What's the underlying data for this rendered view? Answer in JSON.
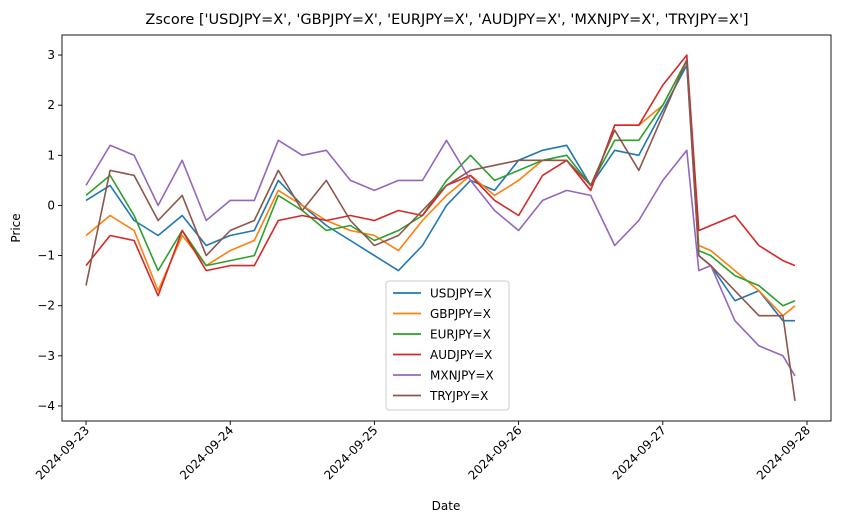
{
  "chart_data": {
    "type": "line",
    "title": "Zscore ['USDJPY=X', 'GBPJPY=X', 'EURJPY=X', 'AUDJPY=X', 'MXNJPY=X', 'TRYJPY=X']",
    "xlabel": "Date",
    "ylabel": "Price",
    "x_ticks": [
      "2024-09-23",
      "2024-09-24",
      "2024-09-25",
      "2024-09-26",
      "2024-09-27",
      "2024-09-28"
    ],
    "y_ticks": [
      "3",
      "2",
      "1",
      "0",
      "−1",
      "−2",
      "−3",
      "−4"
    ],
    "xlim": [
      "2024-09-22T20:00",
      "2024-09-28T04:00"
    ],
    "ylim": [
      -4.3,
      3.4
    ],
    "grid": false,
    "legend_position": "lower center",
    "x": [
      "2024-09-23T00:00",
      "2024-09-23T04:00",
      "2024-09-23T08:00",
      "2024-09-23T12:00",
      "2024-09-23T16:00",
      "2024-09-23T20:00",
      "2024-09-24T00:00",
      "2024-09-24T04:00",
      "2024-09-24T08:00",
      "2024-09-24T12:00",
      "2024-09-24T16:00",
      "2024-09-24T20:00",
      "2024-09-25T00:00",
      "2024-09-25T04:00",
      "2024-09-25T08:00",
      "2024-09-25T12:00",
      "2024-09-25T16:00",
      "2024-09-25T20:00",
      "2024-09-26T00:00",
      "2024-09-26T04:00",
      "2024-09-26T08:00",
      "2024-09-26T12:00",
      "2024-09-26T16:00",
      "2024-09-26T20:00",
      "2024-09-27T00:00",
      "2024-09-27T04:00",
      "2024-09-27T06:00",
      "2024-09-27T08:00",
      "2024-09-27T12:00",
      "2024-09-27T16:00",
      "2024-09-27T20:00",
      "2024-09-27T22:00"
    ],
    "series": [
      {
        "name": "USDJPY=X",
        "color": "#1f77b4",
        "values": [
          0.1,
          0.4,
          -0.3,
          -0.6,
          -0.2,
          -0.8,
          -0.6,
          -0.5,
          0.5,
          0.0,
          -0.4,
          -0.7,
          -1.0,
          -1.3,
          -0.8,
          0.0,
          0.5,
          0.3,
          0.9,
          1.1,
          1.2,
          0.4,
          1.1,
          1.0,
          1.9,
          2.8,
          -1.0,
          -1.2,
          -1.9,
          -1.7,
          -2.3,
          -2.3
        ]
      },
      {
        "name": "GBPJPY=X",
        "color": "#ff7f0e",
        "values": [
          -0.6,
          -0.2,
          -0.5,
          -1.7,
          -0.6,
          -1.2,
          -0.9,
          -0.7,
          0.3,
          0.0,
          -0.3,
          -0.5,
          -0.6,
          -0.9,
          -0.3,
          0.2,
          0.6,
          0.2,
          0.5,
          0.9,
          0.9,
          0.3,
          1.6,
          1.6,
          2.0,
          2.9,
          -0.8,
          -0.9,
          -1.3,
          -1.7,
          -2.2,
          -2.0
        ]
      },
      {
        "name": "EURJPY=X",
        "color": "#2ca02c",
        "values": [
          0.2,
          0.6,
          -0.2,
          -1.3,
          -0.5,
          -1.2,
          -1.1,
          -1.0,
          0.2,
          -0.1,
          -0.5,
          -0.4,
          -0.7,
          -0.5,
          -0.2,
          0.5,
          1.0,
          0.5,
          0.7,
          0.9,
          1.0,
          0.4,
          1.3,
          1.3,
          2.0,
          2.9,
          -0.9,
          -1.0,
          -1.4,
          -1.6,
          -2.0,
          -1.9
        ]
      },
      {
        "name": "AUDJPY=X",
        "color": "#d62728",
        "values": [
          -1.2,
          -0.6,
          -0.7,
          -1.8,
          -0.5,
          -1.3,
          -1.2,
          -1.2,
          -0.3,
          -0.2,
          -0.3,
          -0.2,
          -0.3,
          -0.1,
          -0.2,
          0.4,
          0.6,
          0.1,
          -0.2,
          0.6,
          0.9,
          0.3,
          1.6,
          1.6,
          2.4,
          3.0,
          -0.5,
          -0.4,
          -0.2,
          -0.8,
          -1.1,
          -1.2
        ]
      },
      {
        "name": "MXNJPY=X",
        "color": "#9467bd",
        "values": [
          0.4,
          1.2,
          1.0,
          0.0,
          0.9,
          -0.3,
          0.1,
          0.1,
          1.3,
          1.0,
          1.1,
          0.5,
          0.3,
          0.5,
          0.5,
          1.3,
          0.5,
          -0.1,
          -0.5,
          0.1,
          0.3,
          0.2,
          -0.8,
          -0.3,
          0.5,
          1.1,
          -1.3,
          -1.2,
          -2.3,
          -2.8,
          -3.0,
          -3.4
        ]
      },
      {
        "name": "TRYJPY=X",
        "color": "#8c564b",
        "values": [
          -1.6,
          0.7,
          0.6,
          -0.3,
          0.2,
          -1.0,
          -0.5,
          -0.3,
          0.7,
          -0.1,
          0.5,
          -0.3,
          -0.8,
          -0.6,
          -0.1,
          0.4,
          0.7,
          0.8,
          0.9,
          0.9,
          0.9,
          0.4,
          1.5,
          0.7,
          1.8,
          2.9,
          -1.0,
          -1.2,
          -1.7,
          -2.2,
          -2.2,
          -3.9
        ]
      }
    ]
  }
}
